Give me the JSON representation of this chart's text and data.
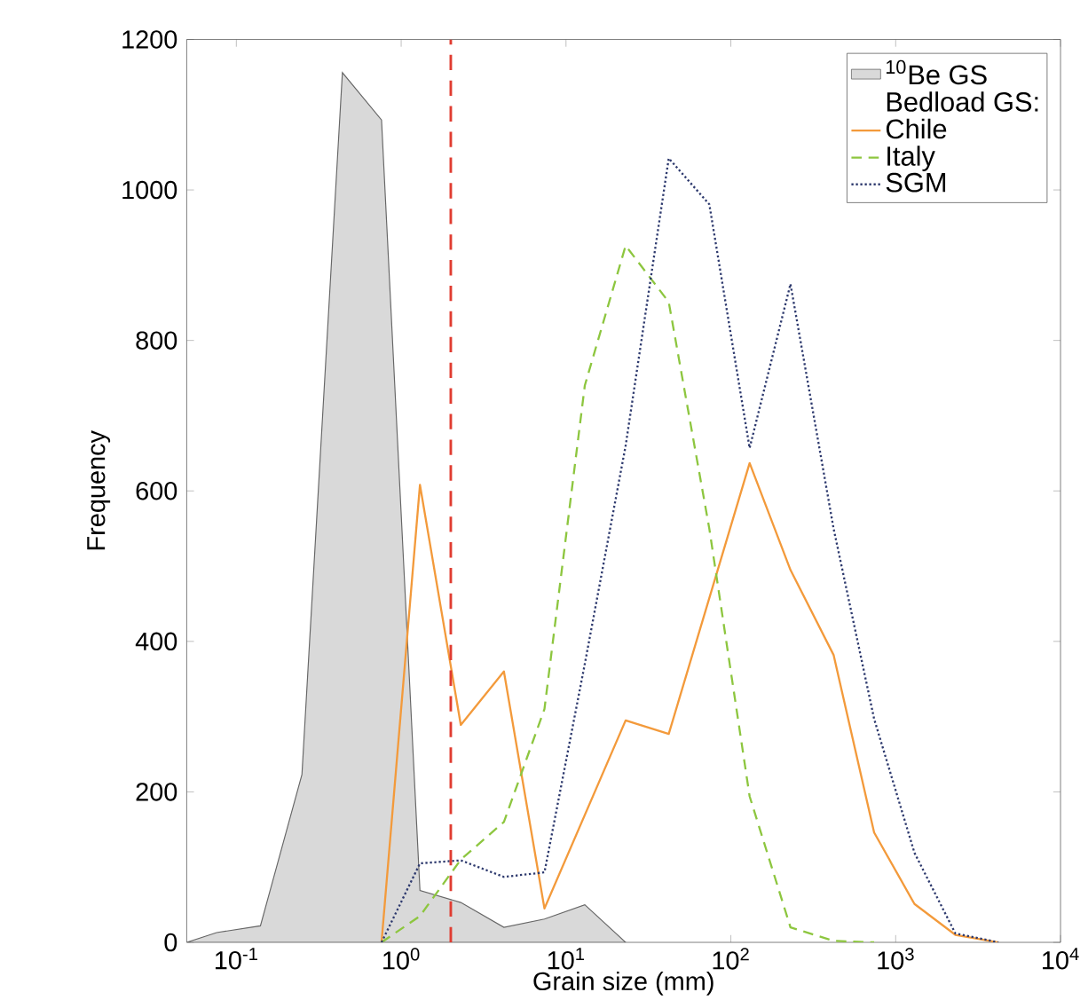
{
  "chart_data": {
    "type": "line",
    "xlabel": "Grain size (mm)",
    "ylabel": "Frequency",
    "legend_title": "Bedload GS:",
    "legend": "top right",
    "log": "x",
    "xlim": [
      0.05,
      10000
    ],
    "ylim": [
      0,
      1200
    ],
    "xticks": [
      {
        "value": 0.1,
        "label": "10$^{-1}$"
      },
      {
        "value": 1,
        "label": "10$^{0}$"
      },
      {
        "value": 10,
        "label": "10$^{1}$"
      },
      {
        "value": 100,
        "label": "10$^{2}$"
      },
      {
        "value": 1000,
        "label": "10$^{3}$"
      },
      {
        "value": 10000,
        "label": "10$^{4}$"
      }
    ],
    "yticks": [
      0,
      200,
      400,
      600,
      800,
      1000,
      1200
    ],
    "ref_lines": [
      {
        "axis": "x",
        "value": 2,
        "color": "#e03c31",
        "line_style": "dashed"
      }
    ],
    "series": [
      {
        "name": "$^{10}$Be GS",
        "type": "area",
        "color": "#d9d9d9",
        "x": [
          0.05,
          0.076,
          0.14,
          0.25,
          0.44,
          0.76,
          1.3,
          2.3,
          4.2,
          7.4,
          13,
          23
        ],
        "values": [
          0,
          13,
          22,
          223,
          1156,
          1093,
          69,
          53,
          20,
          31,
          50,
          0
        ]
      },
      {
        "name": "Chile",
        "line_style": "solid",
        "color": "#f39a3b",
        "x": [
          0.76,
          1.3,
          2.3,
          4.2,
          7.4,
          23,
          42,
          130,
          230,
          420,
          740,
          1300,
          2300,
          4200
        ],
        "values": [
          0,
          608,
          289,
          360,
          45,
          295,
          277,
          637,
          495,
          382,
          146,
          51,
          10,
          0
        ]
      },
      {
        "name": "Italy",
        "line_style": "dashed",
        "color": "#8dc63f",
        "x": [
          0.76,
          1.3,
          2.3,
          4.2,
          7.4,
          13,
          23,
          42,
          74,
          130,
          230,
          420,
          740
        ],
        "values": [
          0,
          35,
          110,
          160,
          310,
          740,
          926,
          851,
          550,
          194,
          20,
          2,
          0
        ]
      },
      {
        "name": "SGM",
        "line_style": "dotted",
        "color": "#2e3a6e",
        "x": [
          0.76,
          1.3,
          2.3,
          4.2,
          7.4,
          13,
          23,
          42,
          74,
          130,
          230,
          420,
          740,
          1300,
          2300,
          4200
        ],
        "values": [
          0,
          105,
          109,
          87,
          93,
          370,
          660,
          1042,
          981,
          657,
          875,
          550,
          297,
          119,
          12,
          0
        ]
      }
    ]
  }
}
